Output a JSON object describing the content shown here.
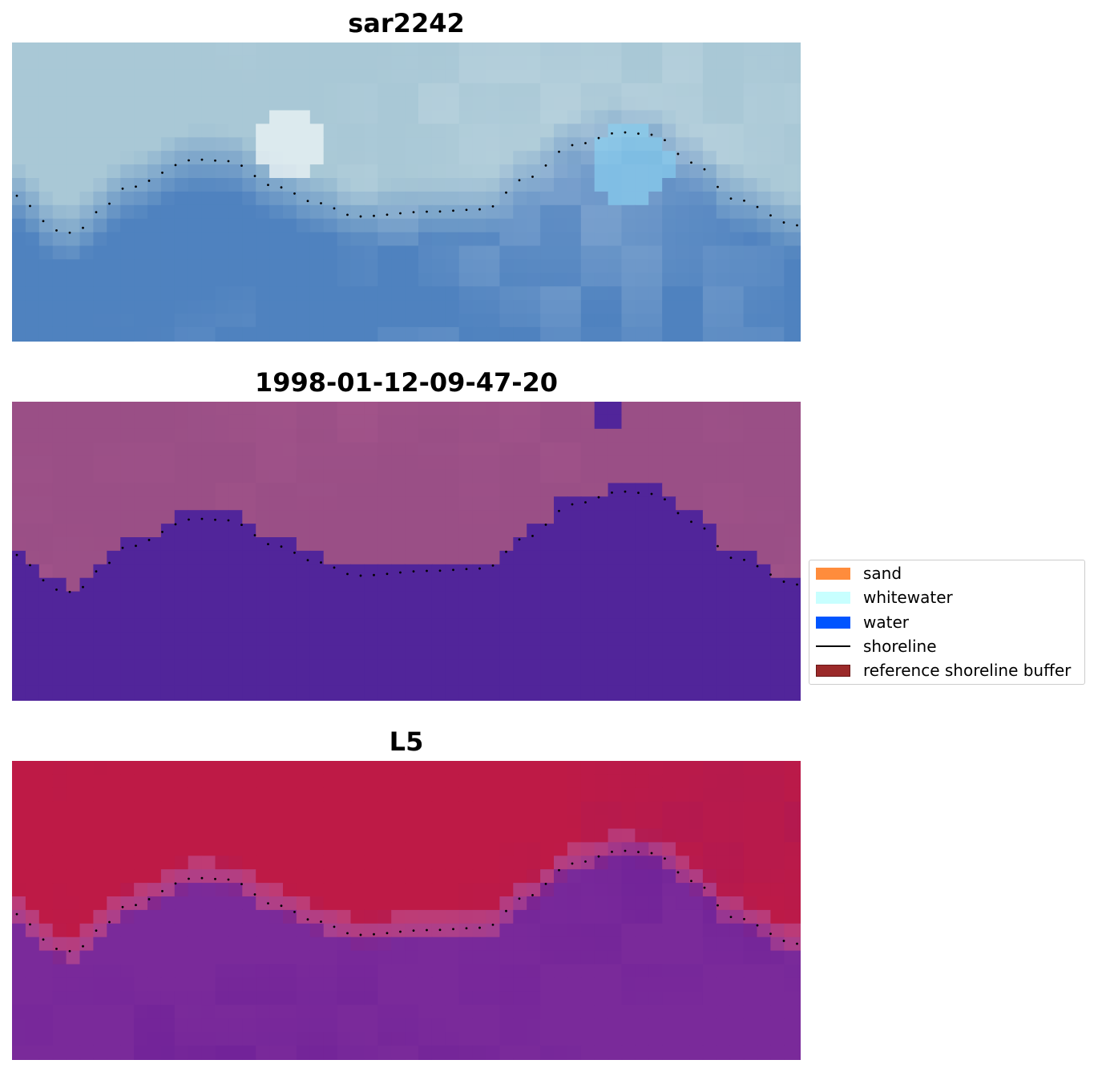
{
  "panels": [
    {
      "title": "sar2242",
      "style": "rgb"
    },
    {
      "title": "1998-01-12-09-47-20",
      "style": "classified"
    },
    {
      "title": "L5",
      "style": "ndwi"
    }
  ],
  "legend": {
    "items": [
      {
        "label": "sand",
        "color": "#ff8c3c",
        "kind": "patch"
      },
      {
        "label": "whitewater",
        "color": "#c8ffff",
        "kind": "patch"
      },
      {
        "label": "water",
        "color": "#0055ff",
        "kind": "patch"
      },
      {
        "label": "shoreline",
        "color": "#000000",
        "kind": "line"
      },
      {
        "label": "reference shoreline buffer",
        "color": "#9b2a2a",
        "kind": "patch"
      }
    ]
  },
  "colors": {
    "rgb_land": "#a9c8d6",
    "rgb_water": "#4f82bf",
    "rgb_whitewater": "#f2f8f8",
    "classified_land": "#9a4f86",
    "classified_water": "#51259a",
    "ndwi_land": "#be1a46",
    "ndwi_water": "#7a2a9a",
    "shoreline_dots": "#000000"
  }
}
